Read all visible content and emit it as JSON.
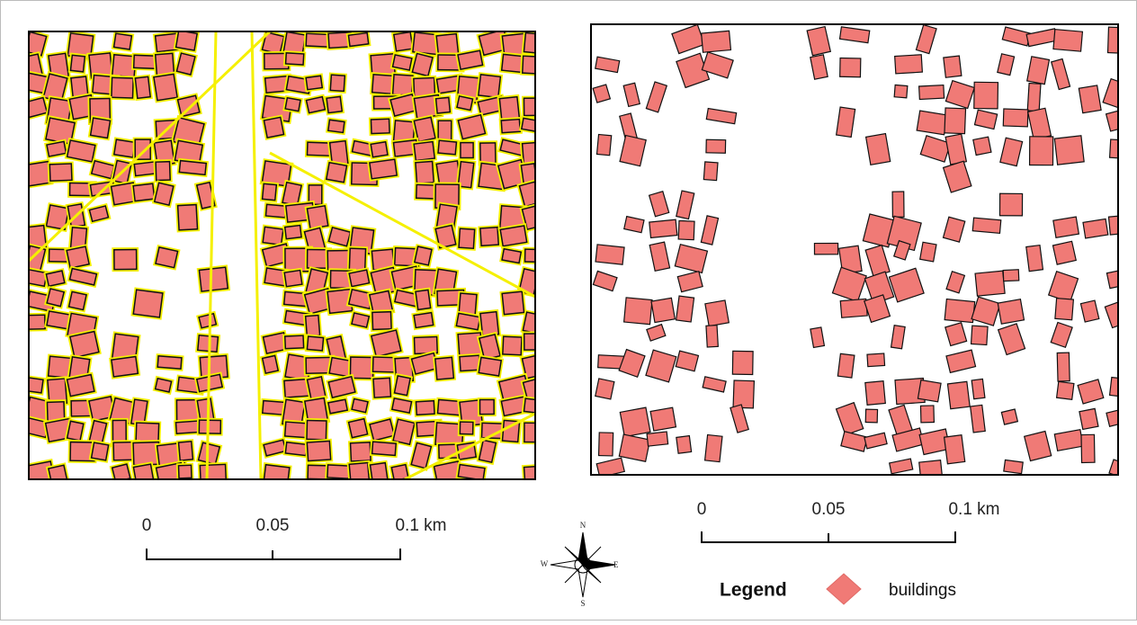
{
  "scale_bars": [
    {
      "labels": [
        "0",
        "0.05",
        "0.1 km"
      ]
    },
    {
      "labels": [
        "0",
        "0.05",
        "0.1 km"
      ]
    }
  ],
  "compass": {
    "north": "N",
    "south": "S",
    "east": "E",
    "west": "W"
  },
  "legend": {
    "title": "Legend",
    "items": [
      "buildings"
    ]
  }
}
